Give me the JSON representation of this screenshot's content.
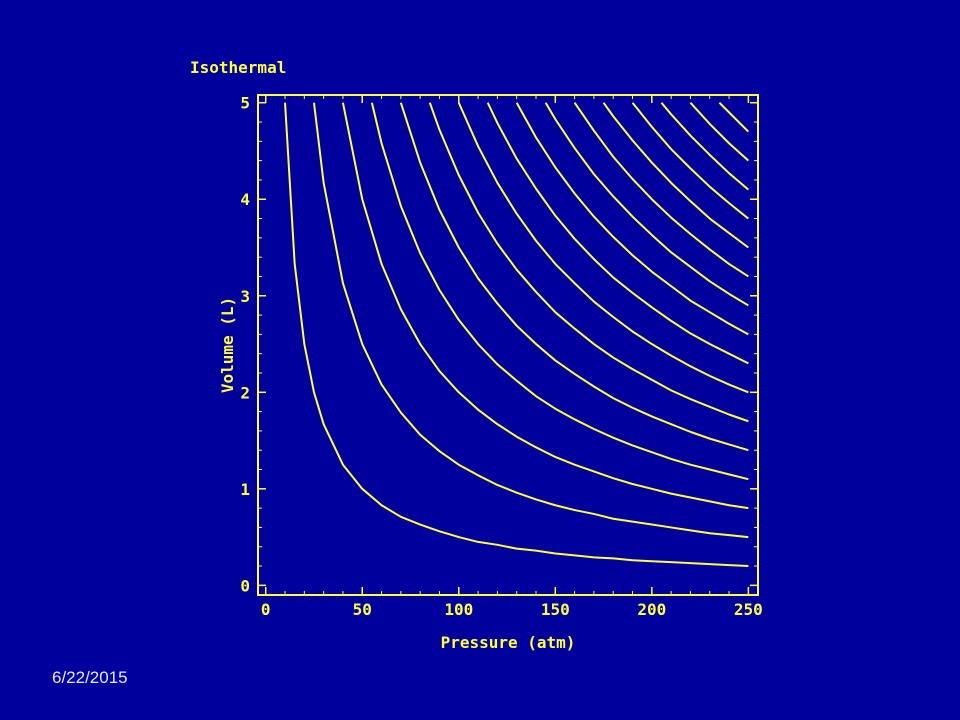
{
  "chart_data": {
    "type": "line",
    "title": "Isothermal",
    "xlabel": "Pressure (atm)",
    "ylabel": "Volume (L)",
    "xlim": [
      -4,
      255
    ],
    "ylim": [
      -0.1,
      5.08
    ],
    "xticks": [
      0,
      50,
      100,
      150,
      200,
      250
    ],
    "yticks": [
      0,
      1,
      2,
      3,
      4,
      5
    ],
    "minor_divisions": 5,
    "grid": false,
    "series": [
      {
        "color": "#ffff40",
        "x": [
          10,
          15,
          20,
          25,
          30,
          40,
          50,
          60,
          70,
          80,
          90,
          100,
          110,
          120,
          130,
          140,
          150,
          160,
          170,
          180,
          190,
          200,
          210,
          220,
          230,
          240,
          250
        ],
        "values": [
          5,
          3.33,
          2.5,
          2,
          1.67,
          1.25,
          1,
          0.83,
          0.71,
          0.63,
          0.56,
          0.5,
          0.45,
          0.42,
          0.38,
          0.36,
          0.33,
          0.31,
          0.29,
          0.28,
          0.26,
          0.25,
          0.24,
          0.23,
          0.22,
          0.21,
          0.2
        ]
      },
      {
        "color": "#ffff40",
        "x": [
          25,
          30,
          40,
          50,
          60,
          70,
          80,
          90,
          100,
          110,
          120,
          130,
          140,
          150,
          160,
          170,
          180,
          190,
          200,
          210,
          220,
          230,
          240,
          250
        ],
        "values": [
          5,
          4.17,
          3.13,
          2.5,
          2.08,
          1.79,
          1.56,
          1.39,
          1.25,
          1.14,
          1.04,
          0.96,
          0.89,
          0.83,
          0.78,
          0.74,
          0.69,
          0.66,
          0.63,
          0.6,
          0.57,
          0.54,
          0.52,
          0.5
        ]
      },
      {
        "color": "#ffff40",
        "x": [
          40,
          50,
          60,
          70,
          80,
          90,
          100,
          110,
          120,
          130,
          140,
          150,
          160,
          170,
          180,
          190,
          200,
          210,
          220,
          230,
          240,
          250
        ],
        "values": [
          5,
          4,
          3.33,
          2.86,
          2.5,
          2.22,
          2,
          1.82,
          1.67,
          1.54,
          1.43,
          1.33,
          1.25,
          1.18,
          1.11,
          1.05,
          1,
          0.95,
          0.91,
          0.87,
          0.83,
          0.8
        ]
      },
      {
        "color": "#ffff40",
        "x": [
          55,
          60,
          70,
          80,
          90,
          100,
          110,
          120,
          130,
          140,
          150,
          160,
          170,
          180,
          190,
          200,
          210,
          220,
          230,
          240,
          250
        ],
        "values": [
          5,
          4.58,
          3.93,
          3.44,
          3.06,
          2.75,
          2.5,
          2.29,
          2.12,
          1.96,
          1.83,
          1.72,
          1.62,
          1.53,
          1.45,
          1.38,
          1.31,
          1.25,
          1.2,
          1.15,
          1.1
        ]
      },
      {
        "color": "#ffff40",
        "x": [
          70,
          80,
          90,
          100,
          110,
          120,
          130,
          140,
          150,
          160,
          170,
          180,
          190,
          200,
          210,
          220,
          230,
          240,
          250
        ],
        "values": [
          5,
          4.38,
          3.89,
          3.5,
          3.18,
          2.92,
          2.69,
          2.5,
          2.33,
          2.19,
          2.06,
          1.94,
          1.84,
          1.75,
          1.67,
          1.59,
          1.52,
          1.46,
          1.4
        ]
      },
      {
        "color": "#ffff40",
        "x": [
          85,
          90,
          100,
          110,
          120,
          130,
          140,
          150,
          160,
          170,
          180,
          190,
          200,
          210,
          220,
          230,
          240,
          250
        ],
        "values": [
          5,
          4.72,
          4.25,
          3.86,
          3.54,
          3.27,
          3.04,
          2.83,
          2.66,
          2.5,
          2.36,
          2.24,
          2.13,
          2.02,
          1.93,
          1.85,
          1.77,
          1.7
        ]
      },
      {
        "color": "#ffff40",
        "x": [
          100,
          110,
          120,
          130,
          140,
          150,
          160,
          170,
          180,
          190,
          200,
          210,
          220,
          230,
          240,
          250
        ],
        "values": [
          5,
          4.55,
          4.17,
          3.85,
          3.57,
          3.33,
          3.13,
          2.94,
          2.78,
          2.63,
          2.5,
          2.38,
          2.27,
          2.17,
          2.08,
          2
        ]
      },
      {
        "color": "#ffff40",
        "x": [
          115,
          120,
          130,
          140,
          150,
          160,
          170,
          180,
          190,
          200,
          210,
          220,
          230,
          240,
          250
        ],
        "values": [
          5,
          4.79,
          4.42,
          4.11,
          3.83,
          3.59,
          3.38,
          3.19,
          3.03,
          2.88,
          2.74,
          2.61,
          2.5,
          2.4,
          2.3
        ]
      },
      {
        "color": "#ffff40",
        "x": [
          130,
          140,
          150,
          160,
          170,
          180,
          190,
          200,
          210,
          220,
          230,
          240,
          250
        ],
        "values": [
          5,
          4.64,
          4.33,
          4.06,
          3.82,
          3.61,
          3.42,
          3.25,
          3.1,
          2.95,
          2.83,
          2.71,
          2.6
        ]
      },
      {
        "color": "#ffff40",
        "x": [
          145,
          150,
          160,
          170,
          180,
          190,
          200,
          210,
          220,
          230,
          240,
          250
        ],
        "values": [
          5,
          4.83,
          4.53,
          4.26,
          4.03,
          3.82,
          3.63,
          3.45,
          3.3,
          3.15,
          3.02,
          2.9
        ]
      },
      {
        "color": "#ffff40",
        "x": [
          160,
          170,
          180,
          190,
          200,
          210,
          220,
          230,
          240,
          250
        ],
        "values": [
          5,
          4.71,
          4.44,
          4.21,
          4,
          3.81,
          3.64,
          3.48,
          3.33,
          3.2
        ]
      },
      {
        "color": "#ffff40",
        "x": [
          175,
          180,
          190,
          200,
          210,
          220,
          230,
          240,
          250
        ],
        "values": [
          5,
          4.86,
          4.61,
          4.38,
          4.17,
          3.98,
          3.8,
          3.65,
          3.5
        ]
      },
      {
        "color": "#ffff40",
        "x": [
          190,
          200,
          210,
          220,
          230,
          240,
          250
        ],
        "values": [
          5,
          4.75,
          4.52,
          4.32,
          4.13,
          3.96,
          3.8
        ]
      },
      {
        "color": "#ffff40",
        "x": [
          205,
          210,
          220,
          230,
          240,
          250
        ],
        "values": [
          5,
          4.88,
          4.66,
          4.46,
          4.27,
          4.1
        ]
      },
      {
        "color": "#ffff40",
        "x": [
          220,
          230,
          240,
          250
        ],
        "values": [
          5,
          4.78,
          4.58,
          4.4
        ]
      },
      {
        "color": "#ffff40",
        "x": [
          235,
          240,
          250
        ],
        "values": [
          5,
          4.9,
          4.7
        ]
      }
    ]
  },
  "footer": {
    "date": "6/22/2015"
  }
}
